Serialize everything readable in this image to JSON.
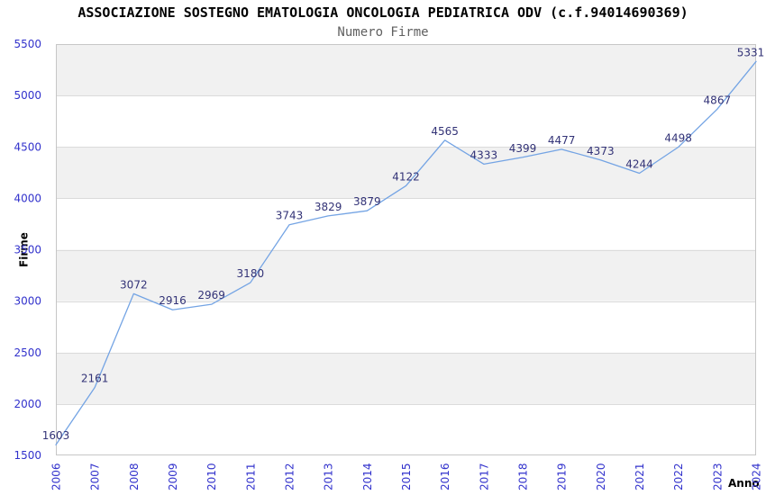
{
  "chart_data": {
    "type": "line",
    "title": "ASSOCIAZIONE SOSTEGNO EMATOLOGIA ONCOLOGIA PEDIATRICA ODV (c.f.94014690369)",
    "subtitle": "Numero Firme",
    "xlabel": "Anno",
    "ylabel": "Firme",
    "categories": [
      "2006",
      "2007",
      "2008",
      "2009",
      "2010",
      "2011",
      "2012",
      "2013",
      "2014",
      "2015",
      "2016",
      "2017",
      "2018",
      "2019",
      "2020",
      "2021",
      "2022",
      "2023",
      "2024"
    ],
    "series": [
      {
        "name": "Numero Firme",
        "values": [
          1603,
          2161,
          3072,
          2916,
          2969,
          3180,
          3743,
          3829,
          3879,
          4122,
          4565,
          4333,
          4399,
          4477,
          4373,
          4244,
          4498,
          4867,
          5331
        ]
      }
    ],
    "ylim": [
      1500,
      5500
    ],
    "ytick_interval": 500,
    "yticks": [
      1500,
      2000,
      2500,
      3000,
      3500,
      4000,
      4500,
      5000,
      5500
    ],
    "show_data_labels": true,
    "grid": "horizontal",
    "banded_background": true,
    "legend": "none",
    "colors": {
      "line": "#74a4e4",
      "tick_label": "#3232cc",
      "data_label": "#333377",
      "band": "#f1f1f1",
      "gridline": "#dbdbdb",
      "plot_border": "#c6c6c6",
      "title": "#000000",
      "subtitle": "#606060",
      "background": "#ffffff"
    }
  }
}
